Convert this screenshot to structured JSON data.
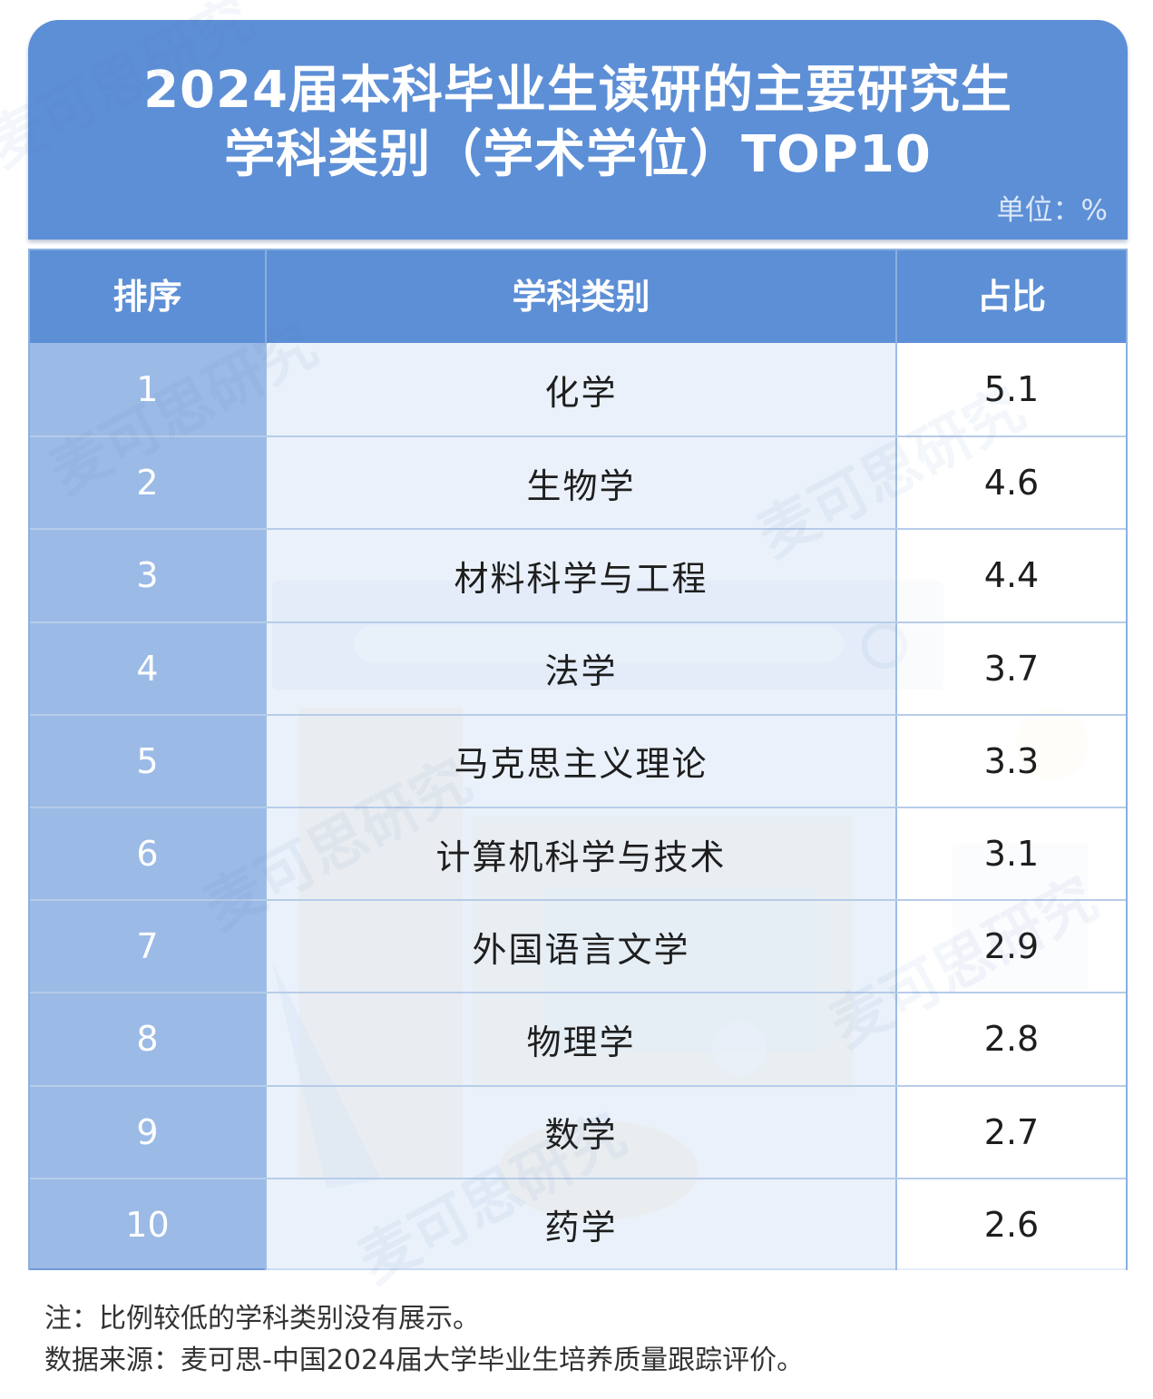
{
  "title": {
    "line1": "2024届本科毕业生读研的主要研究生",
    "line2": "学科类别（学术学位）TOP10",
    "unit": "单位：%"
  },
  "chart_data": {
    "type": "table",
    "columns": [
      "排序",
      "学科类别",
      "占比"
    ],
    "rows": [
      {
        "rank": "1",
        "category": "化学",
        "value": "5.1"
      },
      {
        "rank": "2",
        "category": "生物学",
        "value": "4.6"
      },
      {
        "rank": "3",
        "category": "材料科学与工程",
        "value": "4.4"
      },
      {
        "rank": "4",
        "category": "法学",
        "value": "3.7"
      },
      {
        "rank": "5",
        "category": "马克思主义理论",
        "value": "3.3"
      },
      {
        "rank": "6",
        "category": "计算机科学与技术",
        "value": "3.1"
      },
      {
        "rank": "7",
        "category": "外国语言文学",
        "value": "2.9"
      },
      {
        "rank": "8",
        "category": "物理学",
        "value": "2.8"
      },
      {
        "rank": "9",
        "category": "数学",
        "value": "2.7"
      },
      {
        "rank": "10",
        "category": "药学",
        "value": "2.6"
      }
    ]
  },
  "footnotes": {
    "note": "注：比例较低的学科类别没有展示。",
    "source": "数据来源：麦可思-中国2024届大学毕业生培养质量跟踪评价。"
  },
  "watermark": "麦可思研究",
  "colors": {
    "header_blue": "#5d8fd6",
    "rank_column": "#8caedd",
    "category_column": "#e2ecf8",
    "grid_line": "#b7cce9"
  }
}
